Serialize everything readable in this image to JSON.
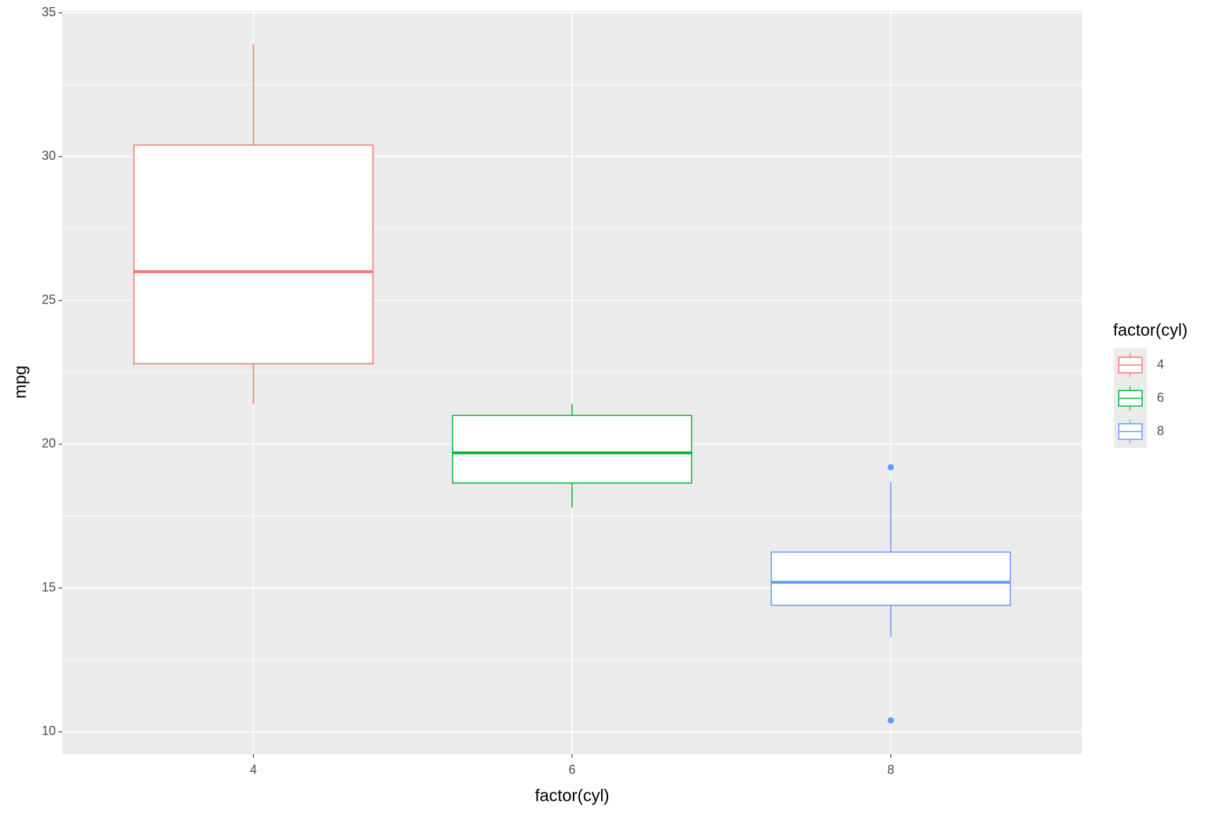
{
  "chart_data": {
    "type": "box",
    "x_label": "factor(cyl)",
    "y_label": "mpg",
    "legend_title": "factor(cyl)",
    "legend": "right",
    "categories": [
      "4",
      "6",
      "8"
    ],
    "boxes": [
      {
        "color": "#F8766D",
        "min": 21.4,
        "q1": 22.8,
        "median": 26,
        "q3": 30.4,
        "max": 33.9,
        "outliers": []
      },
      {
        "color": "#00BA38",
        "min": 17.8,
        "q1": 18.65,
        "median": 19.7,
        "q3": 21,
        "max": 21.4,
        "outliers": []
      },
      {
        "color": "#619CFF",
        "min": 13.3,
        "q1": 14.4,
        "median": 15.2,
        "q3": 16.25,
        "max": 18.7,
        "outliers": [
          10.4,
          19.2
        ]
      }
    ],
    "ylim": [
      9.225,
      35.075
    ],
    "yticks": [
      10,
      15,
      20,
      25,
      30,
      35
    ],
    "grid": true
  }
}
